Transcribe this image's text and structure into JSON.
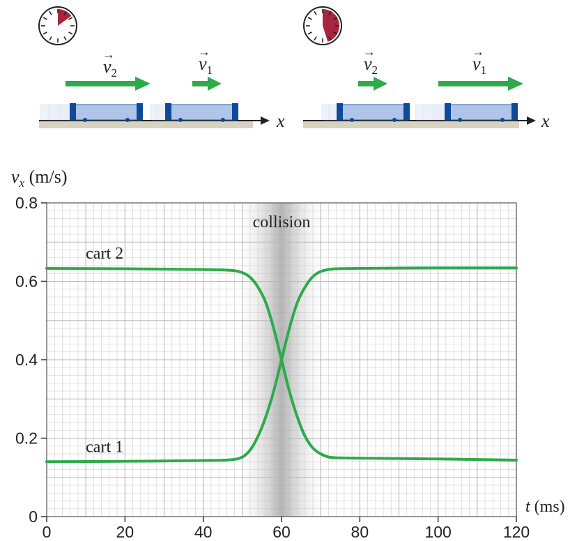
{
  "colors": {
    "curve": "#2eaa4a",
    "arrow": "#2eaa4a",
    "grid_major": "#b7b7b7",
    "grid_minor": "#d9d9d9",
    "clock_fill": "#a8263d",
    "cart_body": "#aec4e8",
    "cart_end": "#0d4a9a",
    "track": "#d8d2c0"
  },
  "illustration": {
    "axis_label": "x",
    "before": {
      "v2_label": "v",
      "v2_sub": "2",
      "v1_label": "v",
      "v1_sub": "1",
      "clock_fraction": 0.15
    },
    "after": {
      "v2_label": "v",
      "v2_sub": "2",
      "v1_label": "v",
      "v1_sub": "1",
      "clock_fraction": 0.45
    }
  },
  "chart_data": {
    "type": "line",
    "ylabel_symbol": "v",
    "ylabel_sub": "x",
    "ylabel_unit": " (m/s)",
    "xlabel_symbol": "t",
    "xlabel_unit": " (ms)",
    "xlim": [
      0,
      120
    ],
    "ylim": [
      0,
      0.8
    ],
    "xticks": [
      0,
      20,
      40,
      60,
      80,
      100,
      120
    ],
    "yticks": [
      0,
      0.2,
      0.4,
      0.6,
      0.8
    ],
    "ytick_labels": [
      "0",
      "0.2",
      "0.4",
      "0.6",
      "0.8"
    ],
    "grid": true,
    "shaded_region": {
      "x": [
        50,
        70
      ],
      "label": "collision"
    },
    "series": [
      {
        "name": "cart 2",
        "x": [
          0,
          20,
          40,
          47,
          50,
          52,
          54,
          56,
          58,
          60,
          62,
          64,
          66,
          68,
          70,
          72,
          74,
          80,
          100,
          120
        ],
        "values": [
          0.633,
          0.632,
          0.63,
          0.628,
          0.622,
          0.61,
          0.585,
          0.545,
          0.48,
          0.4,
          0.32,
          0.255,
          0.205,
          0.175,
          0.16,
          0.152,
          0.15,
          0.149,
          0.147,
          0.144
        ]
      },
      {
        "name": "cart 1",
        "x": [
          0,
          20,
          40,
          47,
          50,
          52,
          54,
          56,
          58,
          60,
          62,
          64,
          66,
          68,
          70,
          72,
          74,
          80,
          100,
          120
        ],
        "values": [
          0.14,
          0.141,
          0.143,
          0.145,
          0.152,
          0.17,
          0.205,
          0.255,
          0.32,
          0.4,
          0.48,
          0.545,
          0.585,
          0.612,
          0.625,
          0.63,
          0.632,
          0.633,
          0.634,
          0.634
        ]
      }
    ]
  }
}
